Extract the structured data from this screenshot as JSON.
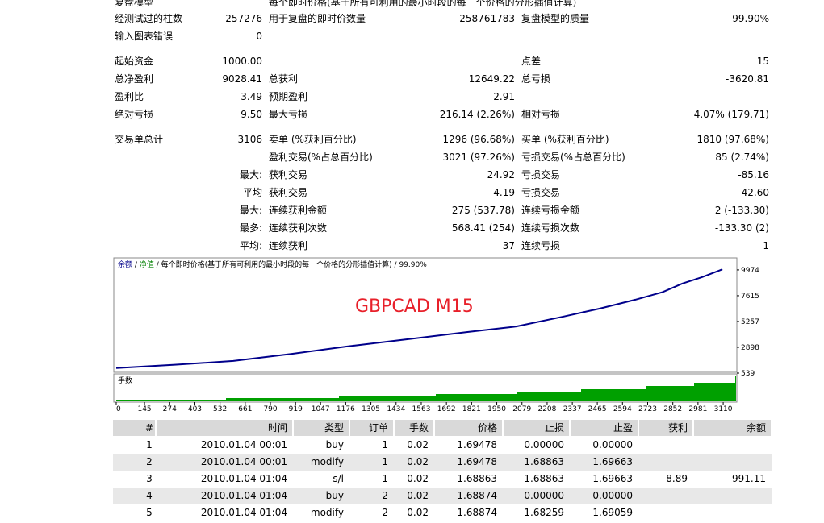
{
  "stats": {
    "rows": [
      [
        "复盘模型",
        null,
        "每个即时价格(基于所有可利用的最小时段的每一个价格的分形插值计算)",
        null,
        null,
        null
      ],
      [
        "经测试过的柱数",
        "257276",
        "用于复盘的即时价数量",
        "258761783",
        "复盘模型的质量",
        "99.90%"
      ],
      [
        "输入图表错误",
        "0",
        null,
        null,
        null,
        null
      ],
      [
        "起始资金",
        "1000.00",
        null,
        null,
        "点差",
        "15"
      ],
      [
        "总净盈利",
        "9028.41",
        "总获利",
        "12649.22",
        "总亏损",
        "-3620.81"
      ],
      [
        "盈利比",
        "3.49",
        "预期盈利",
        "2.91",
        null,
        null
      ],
      [
        "绝对亏损",
        "9.50",
        "最大亏损",
        "216.14 (2.26%)",
        "相对亏损",
        "4.07% (179.71)"
      ],
      [
        "交易单总计",
        "3106",
        "卖单 (%获利百分比)",
        "1296 (96.68%)",
        "买单 (%获利百分比)",
        "1810 (97.68%)"
      ],
      [
        null,
        null,
        "盈利交易(%占总百分比)",
        "3021 (97.26%)",
        "亏损交易(%占总百分比)",
        "85 (2.74%)"
      ],
      [
        null,
        "最大:",
        "获利交易",
        "24.92",
        "亏损交易",
        "-85.16"
      ],
      [
        null,
        "平均",
        "获利交易",
        "4.19",
        "亏损交易",
        "-42.60"
      ],
      [
        null,
        "最大:",
        "连续获利金额",
        "275 (537.78)",
        "连续亏损金额",
        "2 (-133.30)"
      ],
      [
        null,
        "最多:",
        "连续获利次数",
        "568.41 (254)",
        "连续亏损次数",
        "-133.30 (2)"
      ],
      [
        null,
        "平均:",
        "连续获利",
        "37",
        "连续亏损",
        "1"
      ]
    ]
  },
  "chart": {
    "legend": [
      {
        "text": "余额",
        "color": "#00008b"
      },
      {
        "text": "净值",
        "color": "#008000"
      },
      {
        "text": "每个即时价格(基于所有可利用的最小时段的每一个价格的分形插值计算)",
        "color": "#000000"
      },
      {
        "text": "99.90%",
        "color": "#000000"
      }
    ],
    "legend_separator": "/",
    "overlay": "GBPCAD M15",
    "lots_label": "手数",
    "line_color": "#00008b",
    "lots_color": "#00a000",
    "ylim": [
      539,
      11000
    ],
    "yticks": [
      9974,
      7615,
      5257,
      2898,
      539
    ],
    "xlim": [
      0,
      3180
    ],
    "xticks": [
      0,
      145,
      274,
      403,
      532,
      661,
      790,
      919,
      1047,
      1176,
      1305,
      1434,
      1563,
      1692,
      1821,
      1950,
      2079,
      2208,
      2337,
      2465,
      2594,
      2723,
      2852,
      2981,
      3110
    ],
    "equity": {
      "x": [
        0,
        300,
        600,
        900,
        1180,
        1500,
        1800,
        2050,
        2290,
        2480,
        2660,
        2800,
        2900,
        3000,
        3106
      ],
      "y": [
        1000,
        1300,
        1650,
        2300,
        2970,
        3650,
        4300,
        4800,
        5700,
        6450,
        7250,
        7950,
        8720,
        9300,
        10028
      ]
    }
  },
  "trades": {
    "columns": [
      "#",
      "时间",
      "类型",
      "订单",
      "手数",
      "价格",
      "止损",
      "止盈",
      "获利",
      "余额"
    ],
    "rows": [
      [
        "1",
        "2010.01.04 00:01",
        "buy",
        "1",
        "0.02",
        "1.69478",
        "0.00000",
        "0.00000",
        null,
        null
      ],
      [
        "2",
        "2010.01.04 00:01",
        "modify",
        "1",
        "0.02",
        "1.69478",
        "1.68863",
        "1.69663",
        null,
        null
      ],
      [
        "3",
        "2010.01.04 01:04",
        "s/l",
        "1",
        "0.02",
        "1.68863",
        "1.68863",
        "1.69663",
        "-8.89",
        "991.11"
      ],
      [
        "4",
        "2010.01.04 01:04",
        "buy",
        "2",
        "0.02",
        "1.68874",
        "0.00000",
        "0.00000",
        null,
        null
      ],
      [
        "5",
        "2010.01.04 01:04",
        "modify",
        "2",
        "0.02",
        "1.68874",
        "1.68259",
        "1.69059",
        null,
        null
      ]
    ]
  }
}
